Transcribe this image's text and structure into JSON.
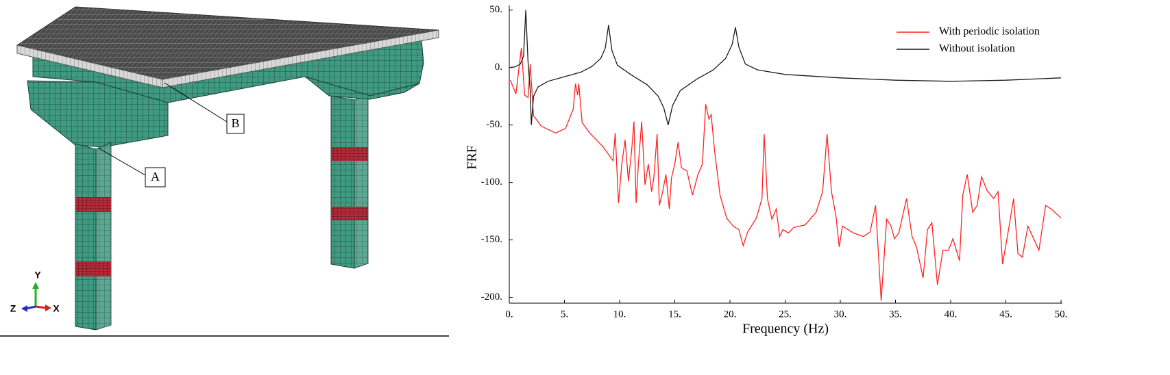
{
  "model": {
    "callouts": [
      "A",
      "B"
    ],
    "axes": {
      "x": "X",
      "y": "Y",
      "z": "Z"
    }
  },
  "chart_data": {
    "type": "line",
    "xlabel": "Frequency (Hz)",
    "ylabel": "FRF",
    "xlim": [
      0,
      50
    ],
    "ylim": [
      -205,
      54
    ],
    "xticks": [
      {
        "value": 0,
        "label": "0."
      },
      {
        "value": 5,
        "label": "5."
      },
      {
        "value": 10,
        "label": "10."
      },
      {
        "value": 15,
        "label": "15."
      },
      {
        "value": 20,
        "label": "20."
      },
      {
        "value": 25,
        "label": "25."
      },
      {
        "value": 30,
        "label": "30."
      },
      {
        "value": 35,
        "label": "35."
      },
      {
        "value": 40,
        "label": "40."
      },
      {
        "value": 45,
        "label": "45."
      },
      {
        "value": 50,
        "label": "50."
      }
    ],
    "yticks": [
      {
        "value": 50,
        "label": "50."
      },
      {
        "value": 0,
        "label": "0."
      },
      {
        "value": -50,
        "label": "-50."
      },
      {
        "value": -100,
        "label": "-100."
      },
      {
        "value": -150,
        "label": "-150."
      },
      {
        "value": -200,
        "label": "-200."
      }
    ],
    "grid": false,
    "legend": "upper right",
    "series": [
      {
        "name": "With periodic isolation",
        "color": "#ff2020",
        "x": [
          0.1,
          0.6,
          1.1,
          1.4,
          1.7,
          1.9,
          2.2,
          2.9,
          4.2,
          5.1,
          5.8,
          6.0,
          6.2,
          6.3,
          6.6,
          7.3,
          8.5,
          9.1,
          9.4,
          9.6,
          9.9,
          10.2,
          10.5,
          10.8,
          11.1,
          11.3,
          11.5,
          11.7,
          12.0,
          12.3,
          12.6,
          12.9,
          13.1,
          13.4,
          13.6,
          13.9,
          14.2,
          14.5,
          14.7,
          15.0,
          15.3,
          15.6,
          15.9,
          16.1,
          16.6,
          17.1,
          17.5,
          17.8,
          18.1,
          18.3,
          18.6,
          19.1,
          19.7,
          20.3,
          20.8,
          21.2,
          21.6,
          22.4,
          22.9,
          23.1,
          23.4,
          23.8,
          24.2,
          24.5,
          24.8,
          25.3,
          25.8,
          26.8,
          27.8,
          28.4,
          28.8,
          29.2,
          29.6,
          29.9,
          30.2,
          31.2,
          32.1,
          32.7,
          33.2,
          33.7,
          34.2,
          34.6,
          34.9,
          35.3,
          36.0,
          36.5,
          36.9,
          37.5,
          37.9,
          38.3,
          38.8,
          39.3,
          39.8,
          40.2,
          40.8,
          41.1,
          41.5,
          42.0,
          42.4,
          42.8,
          43.3,
          43.9,
          44.3,
          44.7,
          45.3,
          45.7,
          46.1,
          46.5,
          47.0,
          48.0,
          48.6,
          49.1,
          50
        ],
        "values": [
          -11,
          -23,
          17,
          -24,
          -26,
          3,
          -42,
          -51,
          -57,
          -53,
          -36,
          -14,
          -24,
          -14,
          -48,
          -57,
          -69,
          -77,
          -81,
          -57,
          -118,
          -84,
          -63,
          -99,
          -71,
          -47,
          -118,
          -84,
          -47,
          -102,
          -84,
          -108,
          -96,
          -58,
          -120,
          -108,
          -93,
          -123,
          -96,
          -84,
          -65,
          -87,
          -89,
          -90,
          -111,
          -93,
          -84,
          -32,
          -45,
          -41,
          -72,
          -111,
          -131,
          -138,
          -141,
          -155,
          -143,
          -131,
          -114,
          -58,
          -114,
          -132,
          -123,
          -147,
          -141,
          -144,
          -139,
          -137,
          -126,
          -108,
          -58,
          -108,
          -129,
          -156,
          -138,
          -144,
          -147,
          -143,
          -120,
          -203,
          -132,
          -138,
          -149,
          -144,
          -114,
          -147,
          -156,
          -183,
          -141,
          -135,
          -189,
          -159,
          -159,
          -149,
          -168,
          -111,
          -93,
          -126,
          -120,
          -95,
          -107,
          -114,
          -108,
          -171,
          -138,
          -114,
          -162,
          -165,
          -138,
          -159,
          -120,
          -123,
          -131
        ]
      },
      {
        "name": "Without isolation",
        "color": "#1a1a1a",
        "x": [
          0,
          0.5,
          1.0,
          1.3,
          1.5,
          1.7,
          1.9,
          2.0,
          2.2,
          2.6,
          3.5,
          5,
          6.5,
          7.5,
          8.3,
          8.7,
          9.0,
          9.3,
          9.8,
          11,
          12.5,
          13.5,
          14.0,
          14.4,
          14.8,
          15.5,
          17,
          18.5,
          19.6,
          20.2,
          20.5,
          20.8,
          21.4,
          22.5,
          25,
          30,
          35,
          40,
          45,
          50
        ],
        "values": [
          0,
          0.5,
          3,
          10,
          50,
          5,
          -20,
          -50,
          -25,
          -17,
          -12,
          -8,
          -4,
          1,
          8,
          17,
          37,
          15,
          2,
          -6,
          -15,
          -25,
          -35,
          -50,
          -33,
          -20,
          -10,
          -2,
          8,
          20,
          35,
          18,
          3,
          -2,
          -6,
          -9,
          -11,
          -12,
          -11,
          -9
        ]
      }
    ]
  }
}
